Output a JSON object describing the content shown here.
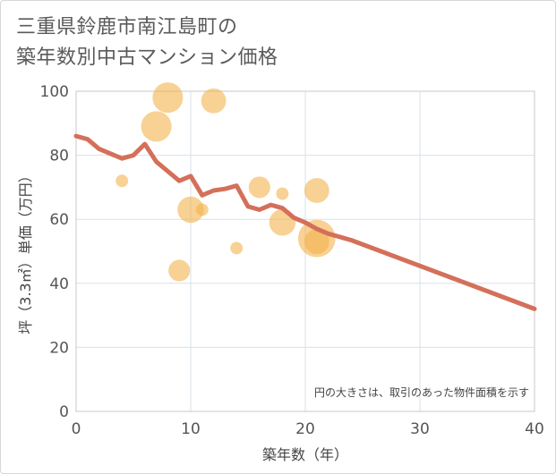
{
  "title": {
    "line1": "三重県鈴鹿市南江島町の",
    "line2": "築年数別中古マンション価格"
  },
  "chart_data": {
    "type": "scatter",
    "xlabel": "築年数（年）",
    "ylabel": "坪（3.3㎡）単価（万円）",
    "xlim": [
      0,
      40
    ],
    "ylim": [
      0,
      100
    ],
    "x_ticks": [
      0,
      10,
      20,
      30,
      40
    ],
    "y_ticks": [
      0,
      20,
      40,
      60,
      80,
      100
    ],
    "grid": true,
    "note": "円の大きさは、取引のあった物件面積を示す",
    "colors": {
      "bubble": "#f3b34d",
      "line": "#d4705a",
      "grid": "#d9e1ea",
      "frame": "#c8c8c8"
    },
    "points": [
      {
        "x": 8,
        "y": 98,
        "size": 60
      },
      {
        "x": 12,
        "y": 97,
        "size": 40
      },
      {
        "x": 7,
        "y": 89,
        "size": 60
      },
      {
        "x": 4,
        "y": 72,
        "size": 10
      },
      {
        "x": 16,
        "y": 70,
        "size": 30
      },
      {
        "x": 18,
        "y": 68,
        "size": 10
      },
      {
        "x": 21,
        "y": 69,
        "size": 40
      },
      {
        "x": 10,
        "y": 63,
        "size": 45
      },
      {
        "x": 11,
        "y": 63,
        "size": 10
      },
      {
        "x": 18,
        "y": 59,
        "size": 45
      },
      {
        "x": 21,
        "y": 54,
        "size": 90
      },
      {
        "x": 21,
        "y": 53,
        "size": 40
      },
      {
        "x": 14,
        "y": 51,
        "size": 10
      },
      {
        "x": 9,
        "y": 44,
        "size": 30
      }
    ],
    "series": [
      {
        "name": "trend",
        "x": [
          0,
          1,
          2,
          3,
          4,
          5,
          6,
          7,
          8,
          9,
          10,
          11,
          12,
          13,
          14,
          15,
          16,
          17,
          18,
          19,
          20,
          21,
          22,
          23,
          24,
          40
        ],
        "values": [
          86,
          85,
          82,
          80.5,
          79,
          80,
          83.5,
          78,
          75,
          72,
          73.5,
          67.5,
          69,
          69.5,
          70.5,
          64,
          63,
          64.5,
          63.5,
          60.5,
          59,
          57,
          55.5,
          54.5,
          53.5,
          32
        ]
      }
    ]
  }
}
